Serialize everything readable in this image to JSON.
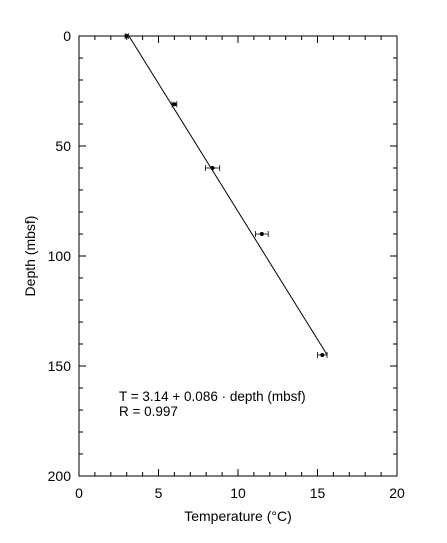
{
  "chart_data": {
    "type": "scatter",
    "xlabel": "Temperature (°C)",
    "ylabel": "Depth (mbsf)",
    "xlim": [
      0,
      20
    ],
    "ylim": [
      200,
      0
    ],
    "y_inverted": true,
    "xticks": [
      0,
      5,
      10,
      15,
      20
    ],
    "yticks": [
      0,
      50,
      100,
      150,
      200
    ],
    "grid": false,
    "points": [
      {
        "x": 3.0,
        "y": 0,
        "xerr": 0.1
      },
      {
        "x": 6.0,
        "y": 31,
        "xerr": 0.15
      },
      {
        "x": 8.4,
        "y": 60,
        "xerr": 0.45
      },
      {
        "x": 11.5,
        "y": 90,
        "xerr": 0.4
      },
      {
        "x": 15.3,
        "y": 145,
        "xerr": 0.3
      }
    ],
    "fit_line": {
      "intercept": 3.14,
      "slope": 0.086,
      "depth_range": [
        0,
        145
      ]
    },
    "annotations": [
      "T = 3.14 + 0.086 · depth (mbsf)",
      "R = 0.997"
    ]
  }
}
